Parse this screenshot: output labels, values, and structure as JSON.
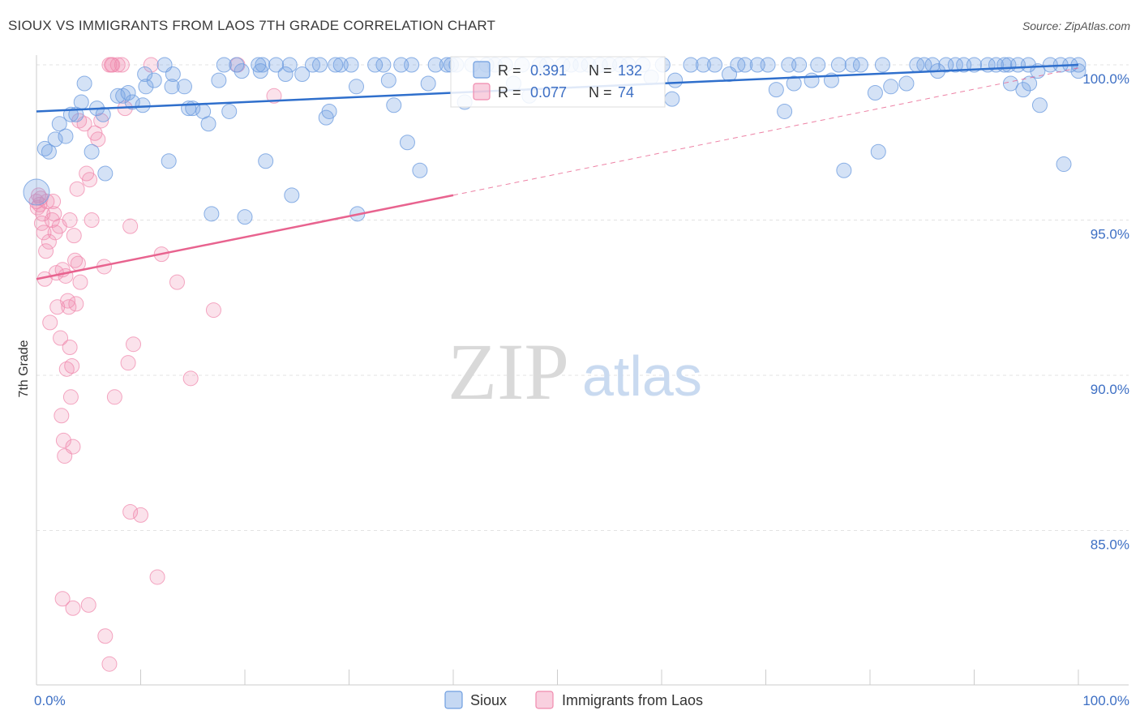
{
  "title": "SIOUX VS IMMIGRANTS FROM LAOS 7TH GRADE CORRELATION CHART",
  "source": "Source: ZipAtlas.com",
  "watermark": {
    "zip": "ZIP",
    "atlas": "atlas"
  },
  "colors": {
    "sioux": "#6f9ee0",
    "sioux_line": "#2f6fcc",
    "laos": "#f08aae",
    "laos_line": "#e8638f",
    "tick": "#3d6fc4",
    "grid": "#e3e3e3"
  },
  "legend_box": {
    "r_label": "R =",
    "n_label": "N =",
    "sioux_r": "0.391",
    "sioux_n": "132",
    "laos_r": "0.077",
    "laos_n": "74"
  },
  "chart_data": {
    "type": "scatter",
    "title": "SIOUX VS IMMIGRANTS FROM LAOS 7TH GRADE CORRELATION CHART",
    "xlabel": "",
    "ylabel": "7th Grade",
    "xlim": [
      0,
      100
    ],
    "ylim": [
      80.5,
      100.5
    ],
    "x_ticks": [
      0,
      10,
      20,
      30,
      40,
      50,
      60,
      70,
      80,
      90,
      100
    ],
    "x_tick_labels": {
      "left": "0.0%",
      "right": "100.0%"
    },
    "y_ticks": [
      100,
      95,
      90,
      85
    ],
    "y_tick_labels": [
      "100.0%",
      "95.0%",
      "90.0%",
      "85.0%"
    ],
    "series": [
      {
        "name": "Sioux",
        "r": 0.391,
        "n": 132,
        "trend": {
          "x0": 0,
          "y0": 98.5,
          "x1": 100,
          "y1": 100.0
        },
        "points": [
          [
            0.8,
            97.3
          ],
          [
            1.2,
            97.2
          ],
          [
            1.8,
            97.6
          ],
          [
            2.2,
            98.1
          ],
          [
            2.8,
            97.7
          ],
          [
            3.3,
            98.4
          ],
          [
            3.8,
            98.4
          ],
          [
            4.3,
            98.8
          ],
          [
            4.6,
            99.4
          ],
          [
            5.3,
            97.2
          ],
          [
            5.8,
            98.6
          ],
          [
            6.4,
            98.4
          ],
          [
            6.6,
            96.5
          ],
          [
            7.8,
            99.0
          ],
          [
            8.3,
            99.0
          ],
          [
            8.8,
            99.1
          ],
          [
            9.2,
            98.8
          ],
          [
            10.2,
            98.7
          ],
          [
            10.5,
            99.3
          ],
          [
            10.4,
            99.7
          ],
          [
            11.3,
            99.5
          ],
          [
            12.3,
            100.0
          ],
          [
            12.7,
            96.9
          ],
          [
            13.0,
            99.3
          ],
          [
            13.1,
            99.7
          ],
          [
            14.2,
            99.3
          ],
          [
            14.6,
            98.6
          ],
          [
            15.0,
            98.6
          ],
          [
            16.0,
            98.5
          ],
          [
            16.5,
            98.1
          ],
          [
            16.8,
            95.2
          ],
          [
            17.5,
            99.5
          ],
          [
            18.0,
            100.0
          ],
          [
            18.5,
            98.5
          ],
          [
            19.2,
            100.0
          ],
          [
            19.7,
            99.8
          ],
          [
            20.0,
            95.1
          ],
          [
            21.3,
            100.0
          ],
          [
            21.7,
            100.0
          ],
          [
            21.5,
            99.8
          ],
          [
            22.0,
            96.9
          ],
          [
            23.0,
            100.0
          ],
          [
            23.9,
            99.7
          ],
          [
            24.3,
            100.0
          ],
          [
            24.5,
            95.8
          ],
          [
            25.5,
            99.7
          ],
          [
            26.5,
            100.0
          ],
          [
            27.2,
            100.0
          ],
          [
            27.8,
            98.3
          ],
          [
            28.1,
            98.5
          ],
          [
            28.7,
            100.0
          ],
          [
            29.2,
            100.0
          ],
          [
            30.2,
            100.0
          ],
          [
            30.7,
            99.3
          ],
          [
            30.8,
            95.2
          ],
          [
            32.5,
            100.0
          ],
          [
            33.3,
            100.0
          ],
          [
            33.8,
            99.5
          ],
          [
            34.3,
            98.7
          ],
          [
            35.0,
            100.0
          ],
          [
            35.6,
            97.5
          ],
          [
            36.0,
            100.0
          ],
          [
            36.8,
            96.6
          ],
          [
            37.6,
            99.4
          ],
          [
            38.3,
            100.0
          ],
          [
            39.4,
            100.0
          ],
          [
            39.8,
            100.0
          ],
          [
            40.3,
            100.0
          ],
          [
            41.1,
            98.8
          ],
          [
            41.8,
            100.0
          ],
          [
            43.2,
            100.0
          ],
          [
            44.0,
            100.0
          ],
          [
            45.0,
            100.0
          ],
          [
            45.8,
            99.4
          ],
          [
            46.6,
            100.0
          ],
          [
            47.3,
            99.0
          ],
          [
            48.3,
            100.0
          ],
          [
            49.0,
            100.0
          ],
          [
            50.5,
            100.0
          ],
          [
            51.3,
            100.0
          ],
          [
            52.2,
            100.0
          ],
          [
            53.0,
            100.0
          ],
          [
            54.1,
            100.0
          ],
          [
            55.0,
            100.0
          ],
          [
            56.0,
            100.0
          ],
          [
            56.8,
            100.0
          ],
          [
            58.2,
            100.0
          ],
          [
            59.0,
            99.6
          ],
          [
            60.1,
            100.0
          ],
          [
            61.3,
            99.5
          ],
          [
            62.8,
            100.0
          ],
          [
            64.0,
            100.0
          ],
          [
            65.1,
            100.0
          ],
          [
            66.5,
            99.7
          ],
          [
            67.3,
            100.0
          ],
          [
            68.0,
            100.0
          ],
          [
            69.2,
            100.0
          ],
          [
            70.2,
            100.0
          ],
          [
            71.0,
            99.2
          ],
          [
            72.2,
            100.0
          ],
          [
            73.2,
            100.0
          ],
          [
            74.4,
            99.5
          ],
          [
            75.0,
            100.0
          ],
          [
            76.3,
            99.5
          ],
          [
            77.0,
            100.0
          ],
          [
            78.3,
            100.0
          ],
          [
            79.1,
            100.0
          ],
          [
            80.5,
            99.1
          ],
          [
            81.2,
            100.0
          ],
          [
            82.0,
            99.3
          ],
          [
            83.5,
            99.4
          ],
          [
            84.5,
            100.0
          ],
          [
            85.2,
            100.0
          ],
          [
            86.0,
            100.0
          ],
          [
            86.5,
            99.8
          ],
          [
            87.3,
            100.0
          ],
          [
            88.2,
            100.0
          ],
          [
            89.0,
            100.0
          ],
          [
            90.0,
            100.0
          ],
          [
            91.3,
            100.0
          ],
          [
            92.1,
            100.0
          ],
          [
            92.9,
            100.0
          ],
          [
            93.3,
            100.0
          ],
          [
            93.5,
            99.4
          ],
          [
            94.2,
            100.0
          ],
          [
            95.2,
            100.0
          ],
          [
            96.1,
            99.8
          ],
          [
            97.3,
            100.0
          ],
          [
            98.3,
            100.0
          ],
          [
            99.2,
            100.0
          ],
          [
            100.0,
            100.0
          ],
          [
            100.0,
            99.8
          ],
          [
            98.6,
            96.8
          ],
          [
            96.3,
            98.7
          ],
          [
            95.3,
            99.4
          ],
          [
            77.5,
            96.6
          ],
          [
            71.8,
            98.5
          ],
          [
            80.8,
            97.2
          ],
          [
            94.7,
            99.2
          ],
          [
            61.0,
            98.9
          ],
          [
            72.7,
            99.4
          ],
          [
            0.0,
            95.9
          ]
        ]
      },
      {
        "name": "Immigrants from Laos",
        "r": 0.077,
        "n": 74,
        "trend": {
          "x0": 0,
          "y0": 93.1,
          "x1": 40,
          "y1": 95.8
        },
        "trend_ext": {
          "x0": 40,
          "y0": 95.8,
          "x1": 100,
          "y1": 99.9
        },
        "points": [
          [
            0.0,
            95.6
          ],
          [
            0.1,
            95.4
          ],
          [
            0.2,
            95.8
          ],
          [
            0.3,
            95.5
          ],
          [
            0.4,
            95.7
          ],
          [
            0.6,
            95.2
          ],
          [
            0.7,
            94.6
          ],
          [
            0.8,
            93.1
          ],
          [
            1.0,
            95.6
          ],
          [
            1.2,
            94.3
          ],
          [
            1.3,
            91.7
          ],
          [
            1.5,
            95.0
          ],
          [
            1.6,
            95.6
          ],
          [
            1.8,
            94.6
          ],
          [
            1.9,
            93.3
          ],
          [
            2.0,
            92.2
          ],
          [
            2.2,
            94.8
          ],
          [
            2.3,
            91.2
          ],
          [
            2.4,
            88.7
          ],
          [
            2.5,
            93.4
          ],
          [
            2.6,
            87.9
          ],
          [
            2.7,
            87.4
          ],
          [
            2.8,
            93.2
          ],
          [
            2.9,
            90.2
          ],
          [
            3.0,
            92.4
          ],
          [
            3.1,
            92.2
          ],
          [
            3.2,
            90.9
          ],
          [
            3.3,
            89.3
          ],
          [
            3.4,
            90.3
          ],
          [
            3.5,
            87.7
          ],
          [
            3.6,
            94.5
          ],
          [
            3.7,
            93.7
          ],
          [
            3.8,
            92.3
          ],
          [
            3.9,
            96.0
          ],
          [
            4.0,
            93.6
          ],
          [
            4.1,
            98.2
          ],
          [
            4.2,
            93.0
          ],
          [
            4.6,
            98.1
          ],
          [
            5.1,
            96.3
          ],
          [
            5.3,
            95.0
          ],
          [
            5.6,
            97.8
          ],
          [
            5.9,
            97.6
          ],
          [
            6.2,
            98.2
          ],
          [
            6.5,
            93.5
          ],
          [
            7.0,
            100.0
          ],
          [
            7.2,
            100.0
          ],
          [
            7.3,
            100.0
          ],
          [
            7.5,
            89.3
          ],
          [
            7.8,
            100.0
          ],
          [
            8.2,
            100.0
          ],
          [
            8.5,
            98.6
          ],
          [
            8.8,
            90.4
          ],
          [
            9.0,
            94.8
          ],
          [
            9.3,
            91.0
          ],
          [
            10.0,
            85.5
          ],
          [
            11.0,
            100.0
          ],
          [
            11.6,
            83.5
          ],
          [
            13.5,
            93.0
          ],
          [
            14.8,
            89.9
          ],
          [
            17.0,
            92.1
          ],
          [
            19.3,
            100.0
          ],
          [
            22.8,
            99.0
          ],
          [
            5.0,
            82.6
          ],
          [
            6.6,
            81.6
          ],
          [
            7.0,
            80.7
          ],
          [
            2.5,
            82.8
          ],
          [
            1.7,
            95.2
          ],
          [
            0.5,
            94.9
          ],
          [
            3.2,
            95.0
          ],
          [
            4.8,
            96.5
          ],
          [
            9.0,
            85.6
          ],
          [
            12.0,
            93.9
          ],
          [
            3.5,
            82.5
          ],
          [
            0.9,
            94.0
          ]
        ]
      }
    ],
    "legend": [
      "Sioux",
      "Immigrants from Laos"
    ]
  }
}
